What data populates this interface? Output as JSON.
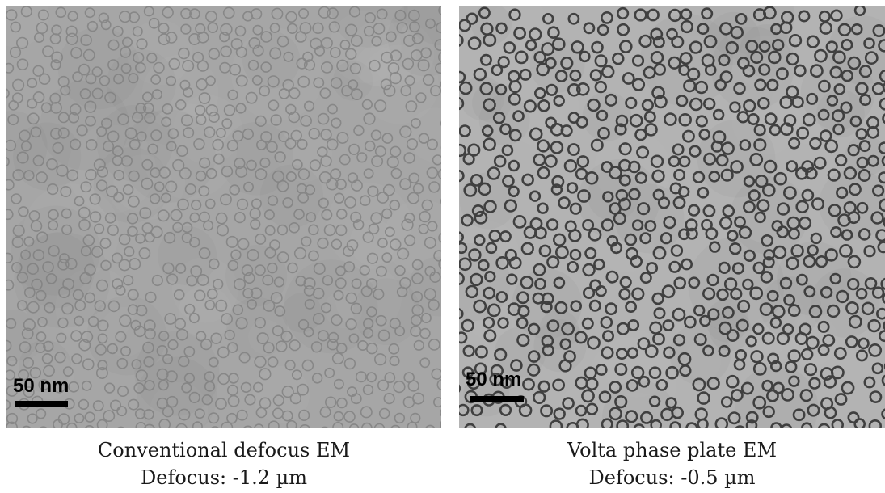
{
  "panels": [
    {
      "scale_bar_label": "50 nm",
      "caption_title": "Conventional defocus EM",
      "caption_detail": "Defocus: -1.2 µm"
    },
    {
      "scale_bar_label": "50 nm",
      "caption_title": "Volta phase plate EM",
      "caption_detail": "Defocus: -0.5 µm"
    }
  ],
  "colors": {
    "left_background": "#a6a6a6",
    "left_particle": "#7d7d7d",
    "right_background": "#b3b3b3",
    "right_particle": "#3a3a3a"
  }
}
